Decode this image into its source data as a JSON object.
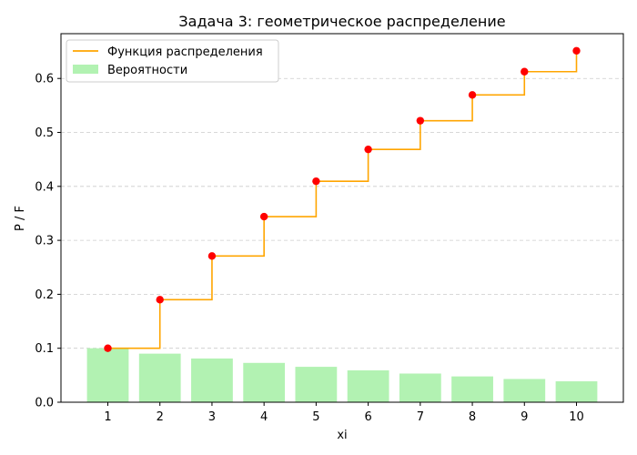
{
  "chart_data": {
    "type": "bar",
    "title": "Задача 3: геометрическое распределение",
    "xlabel": "xi",
    "ylabel": "P / F",
    "x": [
      1,
      2,
      3,
      4,
      5,
      6,
      7,
      8,
      9,
      10
    ],
    "xticks": [
      "1",
      "2",
      "3",
      "4",
      "5",
      "6",
      "7",
      "8",
      "9",
      "10"
    ],
    "ylim": [
      0,
      0.683
    ],
    "yticks": [
      "0.0",
      "0.1",
      "0.2",
      "0.3",
      "0.4",
      "0.5",
      "0.6"
    ],
    "ytick_values": [
      0,
      0.1,
      0.2,
      0.3,
      0.4,
      0.5,
      0.6
    ],
    "grid": "y-dashed",
    "legend_position": "upper-left",
    "series": [
      {
        "name": "Функция распределения",
        "kind": "step",
        "color": "#ffa500",
        "marker_color": "#ff0000",
        "values": [
          0.1,
          0.19,
          0.271,
          0.3439,
          0.40951,
          0.468559,
          0.5217031,
          0.56953279,
          0.612579511,
          0.6513215599
        ]
      },
      {
        "name": "Вероятности",
        "kind": "bar",
        "color": "#b2f2b2",
        "values": [
          0.1,
          0.09,
          0.081,
          0.0729,
          0.06561,
          0.059049,
          0.0531441,
          0.04782969,
          0.043046721,
          0.0387420489
        ]
      }
    ]
  }
}
